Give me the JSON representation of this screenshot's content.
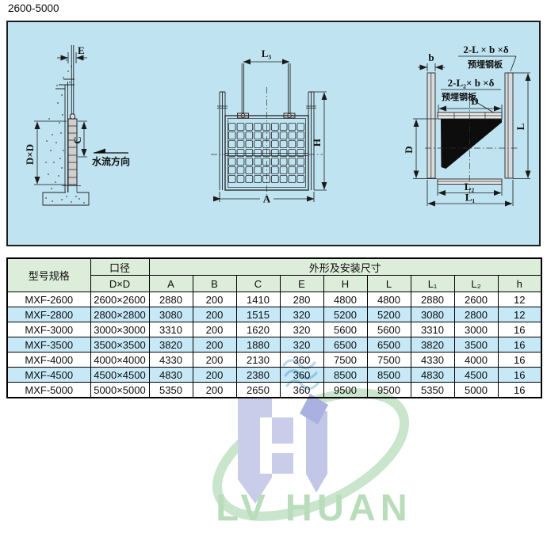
{
  "page": {
    "title": "2600-5000"
  },
  "diagram": {
    "left_view": {
      "dim_e": "E",
      "dim_dxd": "D×D",
      "dim_c": "C",
      "flow_label": "水流方向"
    },
    "front_view": {
      "dim_l3": "L₃",
      "dim_h": "H",
      "dim_a": "A"
    },
    "plan_view": {
      "dim_b": "b",
      "plate_label_top": "2-L × b ×δ",
      "plate_label_top_sub": "预埋钢板",
      "plate_label_inner": "2-L₂× b ×δ",
      "plate_label_inner_sub": "预埋钢板",
      "dim_d_top": "D",
      "dim_d_left": "D",
      "dim_l": "L",
      "dim_l2": "L₂",
      "dim_l1": "L₁"
    }
  },
  "table": {
    "header": {
      "model": "型号规格",
      "bore": "口径",
      "bore_sub": "D×D",
      "dims_group": "外形及安装尺寸",
      "dim_cols": [
        "A",
        "B",
        "C",
        "E",
        "H",
        "L",
        "L₁",
        "L₂",
        "h"
      ]
    },
    "rows": [
      {
        "model": "MXF-2600",
        "dxd": "2600×2600",
        "values": [
          "2880",
          "200",
          "1410",
          "280",
          "4800",
          "4800",
          "2880",
          "2600",
          "12"
        ]
      },
      {
        "model": "MXF-2800",
        "dxd": "2800×2800",
        "values": [
          "3080",
          "200",
          "1515",
          "320",
          "5200",
          "5200",
          "3080",
          "2800",
          "12"
        ]
      },
      {
        "model": "MXF-3000",
        "dxd": "3000×3000",
        "values": [
          "3310",
          "200",
          "1620",
          "320",
          "5600",
          "5600",
          "3310",
          "3000",
          "16"
        ]
      },
      {
        "model": "MXF-3500",
        "dxd": "3500×3500",
        "values": [
          "3820",
          "200",
          "1880",
          "320",
          "6500",
          "6500",
          "3820",
          "3500",
          "16"
        ]
      },
      {
        "model": "MXF-4000",
        "dxd": "4000×4000",
        "values": [
          "4330",
          "200",
          "2130",
          "360",
          "7500",
          "7500",
          "4330",
          "4000",
          "16"
        ]
      },
      {
        "model": "MXF-4500",
        "dxd": "4500×4500",
        "values": [
          "4830",
          "200",
          "2380",
          "360",
          "8500",
          "8500",
          "4830",
          "4500",
          "16"
        ]
      },
      {
        "model": "MXF-5000",
        "dxd": "5000×5000",
        "values": [
          "5350",
          "200",
          "2650",
          "360",
          "9500",
          "9500",
          "5350",
          "5000",
          "16"
        ]
      }
    ]
  },
  "watermark": {
    "brand": "LV HUAN"
  },
  "colors": {
    "panel_bg": "#bfe3f1",
    "table_header_green": "#dcedda",
    "table_row_blue": "#c6e8f7",
    "watermark_green": "#b9dcbb",
    "watermark_blue": "#c9cdea"
  }
}
